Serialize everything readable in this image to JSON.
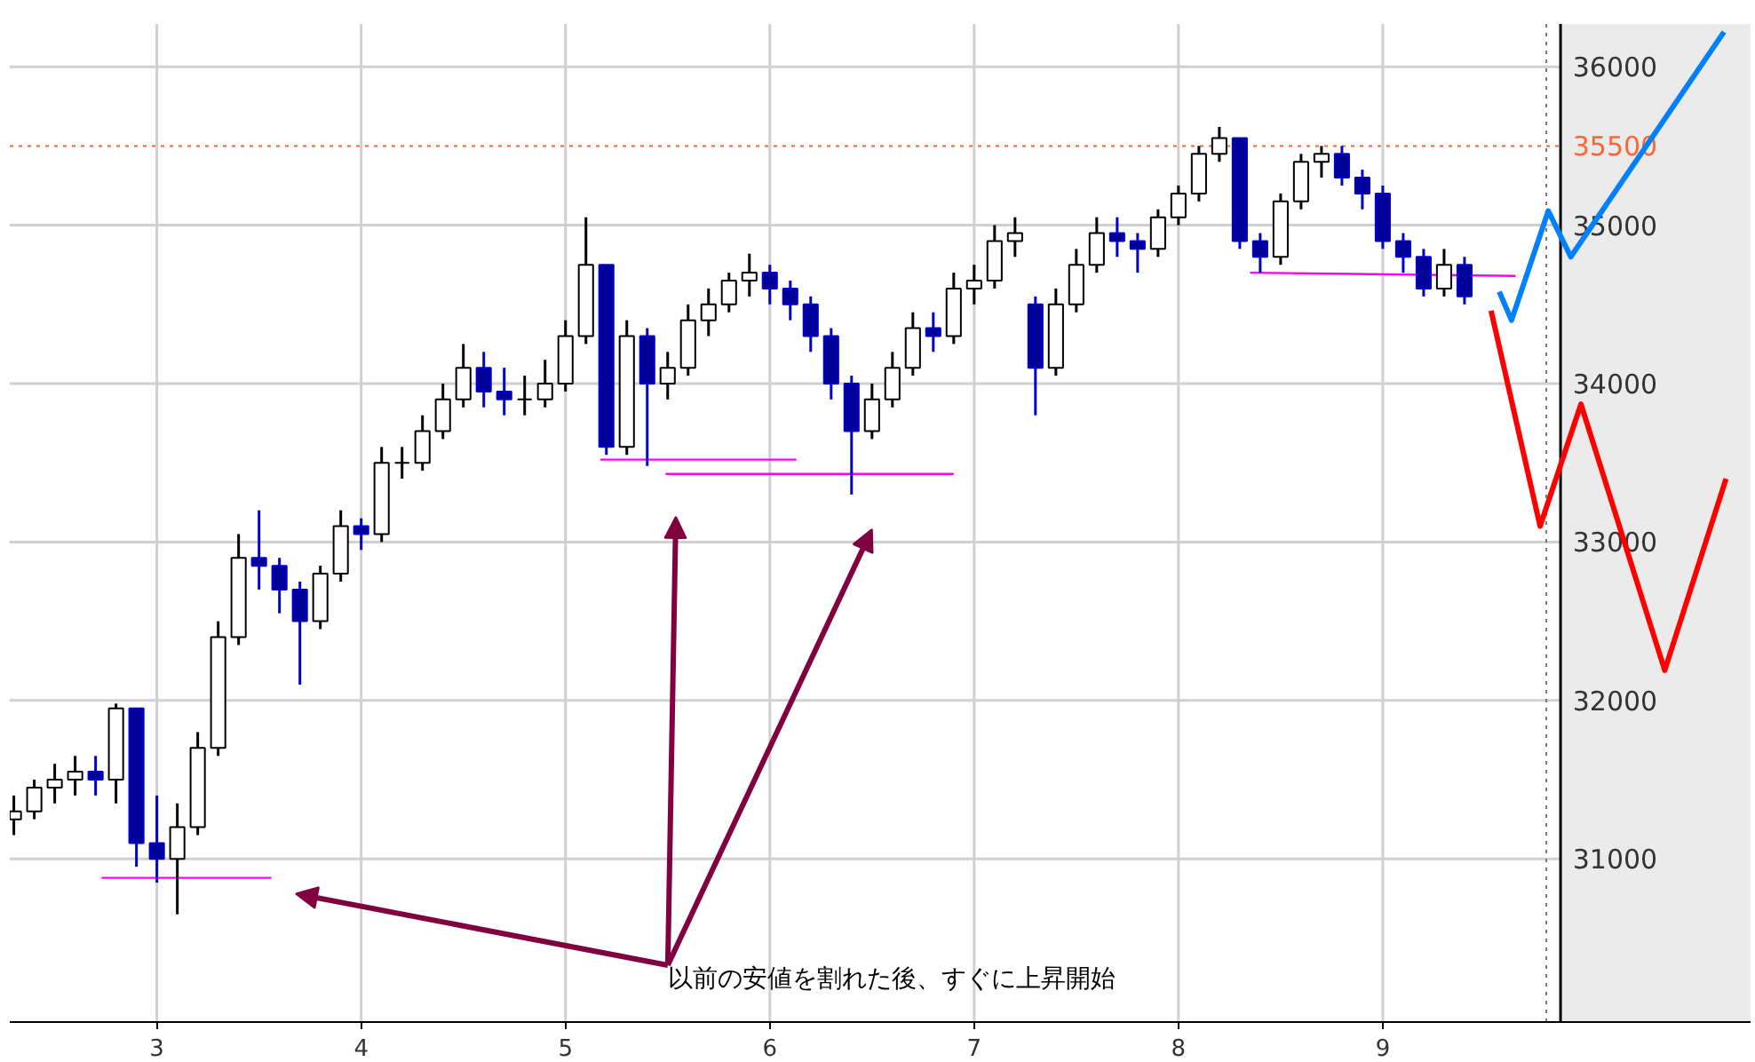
{
  "chart_data": {
    "type": "candlestick",
    "x": [
      2.3,
      2.4,
      2.5,
      2.6,
      2.7,
      2.8,
      2.9,
      3.0,
      3.1,
      3.2,
      3.3,
      3.4,
      3.5,
      3.6,
      3.7,
      3.8,
      3.9,
      4.0,
      4.1,
      4.2,
      4.3,
      4.4,
      4.5,
      4.6,
      4.7,
      4.8,
      4.9,
      5.0,
      5.1,
      5.2,
      5.3,
      5.4,
      5.5,
      5.6,
      5.7,
      5.8,
      5.9,
      6.0,
      6.1,
      6.2,
      6.3,
      6.4,
      6.5,
      6.6,
      6.7,
      6.8,
      6.9,
      7.0,
      7.1,
      7.2,
      7.3,
      7.4,
      7.5,
      7.6,
      7.7,
      7.8,
      7.9,
      8.0,
      8.1,
      8.2,
      8.3,
      8.4,
      8.5,
      8.6,
      8.7,
      8.8,
      8.9,
      9.0,
      9.1,
      9.2,
      9.3,
      9.4
    ],
    "ohlc": [
      [
        31250,
        31400,
        31150,
        31300
      ],
      [
        31300,
        31500,
        31250,
        31450
      ],
      [
        31450,
        31600,
        31350,
        31500
      ],
      [
        31500,
        31650,
        31400,
        31550
      ],
      [
        31550,
        31650,
        31400,
        31500
      ],
      [
        31500,
        31980,
        31350,
        31950
      ],
      [
        31950,
        31950,
        30950,
        31100
      ],
      [
        31100,
        31400,
        30850,
        31000
      ],
      [
        31000,
        31350,
        30650,
        31200
      ],
      [
        31200,
        31800,
        31150,
        31700
      ],
      [
        31700,
        32500,
        31650,
        32400
      ],
      [
        32400,
        33050,
        32350,
        32900
      ],
      [
        32900,
        33200,
        32700,
        32850
      ],
      [
        32850,
        32900,
        32550,
        32700
      ],
      [
        32700,
        32750,
        32100,
        32500
      ],
      [
        32500,
        32850,
        32450,
        32800
      ],
      [
        32800,
        33200,
        32750,
        33100
      ],
      [
        33100,
        33150,
        32950,
        33050
      ],
      [
        33050,
        33600,
        33000,
        33500
      ],
      [
        33500,
        33600,
        33400,
        33500
      ],
      [
        33500,
        33800,
        33450,
        33700
      ],
      [
        33700,
        34000,
        33650,
        33900
      ],
      [
        33900,
        34250,
        33850,
        34100
      ],
      [
        34100,
        34200,
        33850,
        33950
      ],
      [
        33950,
        34100,
        33800,
        33900
      ],
      [
        33900,
        34050,
        33800,
        33900
      ],
      [
        33900,
        34150,
        33850,
        34000
      ],
      [
        34000,
        34400,
        33950,
        34300
      ],
      [
        34300,
        35050,
        34250,
        34750
      ],
      [
        34750,
        34750,
        33550,
        33600
      ],
      [
        33600,
        34400,
        33550,
        34300
      ],
      [
        34300,
        34350,
        33480,
        34000
      ],
      [
        34000,
        34200,
        33900,
        34100
      ],
      [
        34100,
        34500,
        34050,
        34400
      ],
      [
        34400,
        34600,
        34300,
        34500
      ],
      [
        34500,
        34700,
        34450,
        34650
      ],
      [
        34650,
        34820,
        34550,
        34700
      ],
      [
        34700,
        34750,
        34500,
        34600
      ],
      [
        34600,
        34650,
        34400,
        34500
      ],
      [
        34500,
        34550,
        34200,
        34300
      ],
      [
        34300,
        34350,
        33900,
        34000
      ],
      [
        34000,
        34050,
        33300,
        33700
      ],
      [
        33700,
        34000,
        33650,
        33900
      ],
      [
        33900,
        34200,
        33850,
        34100
      ],
      [
        34100,
        34450,
        34050,
        34350
      ],
      [
        34350,
        34450,
        34200,
        34300
      ],
      [
        34300,
        34700,
        34250,
        34600
      ],
      [
        34600,
        34750,
        34500,
        34650
      ],
      [
        34650,
        35000,
        34600,
        34900
      ],
      [
        34900,
        35050,
        34800,
        34950
      ],
      [
        34500,
        34550,
        33800,
        34100
      ],
      [
        34100,
        34600,
        34050,
        34500
      ],
      [
        34500,
        34850,
        34450,
        34750
      ],
      [
        34750,
        35050,
        34700,
        34950
      ],
      [
        34950,
        35050,
        34800,
        34900
      ],
      [
        34900,
        34950,
        34700,
        34850
      ],
      [
        34850,
        35100,
        34800,
        35050
      ],
      [
        35050,
        35250,
        35000,
        35200
      ],
      [
        35200,
        35500,
        35150,
        35450
      ],
      [
        35450,
        35620,
        35400,
        35550
      ],
      [
        35550,
        35550,
        34850,
        34900
      ],
      [
        34900,
        34950,
        34700,
        34800
      ],
      [
        34800,
        35200,
        34750,
        35150
      ],
      [
        35150,
        35450,
        35100,
        35400
      ],
      [
        35400,
        35500,
        35300,
        35450
      ],
      [
        35450,
        35500,
        35250,
        35300
      ],
      [
        35300,
        35350,
        35100,
        35200
      ],
      [
        35200,
        35250,
        34850,
        34900
      ],
      [
        34900,
        34950,
        34700,
        34800
      ],
      [
        34800,
        34850,
        34550,
        34600
      ],
      [
        34600,
        34850,
        34550,
        34750
      ],
      [
        34750,
        34800,
        34500,
        34550
      ]
    ],
    "series": [
      {
        "type": "line",
        "color": "#0080ff",
        "x": [
          9.57,
          9.63,
          9.81,
          9.92,
          10.67
        ],
        "values": [
          34580,
          34400,
          35090,
          34800,
          36220
        ]
      },
      {
        "type": "line",
        "color": "#ff0000",
        "x": [
          9.53,
          9.77,
          9.97,
          10.38,
          10.68
        ],
        "values": [
          34460,
          33100,
          33870,
          32190,
          33400
        ]
      },
      {
        "type": "line",
        "color": "#ff00ff",
        "x": [
          2.73,
          3.56
        ],
        "values": [
          30880,
          30880
        ]
      },
      {
        "type": "line",
        "color": "#ff00ff",
        "x": [
          5.17,
          6.13
        ],
        "values": [
          33520,
          33520
        ]
      },
      {
        "type": "line",
        "color": "#ff00ff",
        "x": [
          5.49,
          6.9
        ],
        "values": [
          33430,
          33430
        ]
      },
      {
        "type": "line",
        "color": "#ff00ff",
        "x": [
          8.35,
          9.65
        ],
        "values": [
          34700,
          34680
        ]
      }
    ],
    "xlim": [
      2.28,
      10.8
    ],
    "ylim": [
      29970,
      36270
    ],
    "xticks": [
      3,
      4,
      5,
      6,
      7,
      8,
      9
    ],
    "yticks": [
      31000,
      32000,
      33000,
      34000,
      35000,
      36000
    ],
    "grid": true,
    "ref_lines": [
      {
        "axis": "y",
        "value": 35500,
        "label": "35500",
        "color": "#ff6633",
        "line_style": "dotted"
      },
      {
        "axis": "x",
        "value": 9.8,
        "color": "#777777",
        "line_style": "dotted"
      }
    ],
    "bands": [
      {
        "axis": "x",
        "from": 9.87,
        "to": 10.8,
        "color": "#ebebeb"
      }
    ],
    "annotations": [
      "以前の安値を割れた後、すぐに上昇開始"
    ]
  }
}
